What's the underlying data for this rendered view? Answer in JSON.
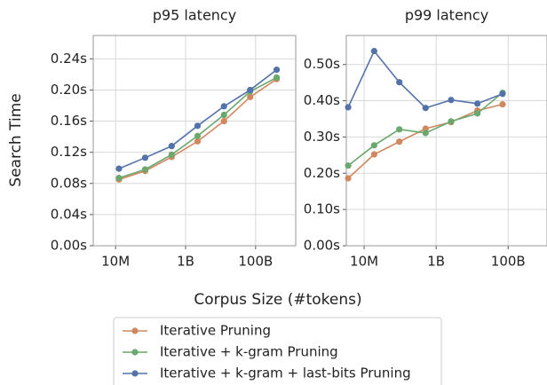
{
  "y_label": "Search Time",
  "x_label": "Corpus Size (#tokens)",
  "chart_data": [
    {
      "type": "line",
      "title": "p95 latency",
      "xscale": "log",
      "grid": true,
      "x": [
        12500000,
        70000000,
        400000000,
        2200000000,
        12500000000,
        70000000000,
        400000000000
      ],
      "xlim": [
        2300000,
        1400000000000
      ],
      "xticks": [
        {
          "value": 10000000,
          "label": "10M"
        },
        {
          "value": 1000000000,
          "label": "1B"
        },
        {
          "value": 100000000000,
          "label": "100B"
        }
      ],
      "ylim": [
        0,
        0.27
      ],
      "yticks": [
        {
          "value": 0,
          "label": "0.00s"
        },
        {
          "value": 0.04,
          "label": "0.04s"
        },
        {
          "value": 0.08,
          "label": "0.08s"
        },
        {
          "value": 0.12,
          "label": "0.12s"
        },
        {
          "value": 0.16,
          "label": "0.16s"
        },
        {
          "value": 0.2,
          "label": "0.20s"
        },
        {
          "value": 0.24,
          "label": "0.24s"
        }
      ],
      "series": [
        {
          "name": "Iterative Pruning",
          "color": "#d0875e",
          "values": [
            0.085,
            0.096,
            0.114,
            0.134,
            0.16,
            0.191,
            0.214
          ]
        },
        {
          "name": "Iterative + k-gram Pruning",
          "color": "#6aa86e",
          "values": [
            0.087,
            0.098,
            0.117,
            0.141,
            0.168,
            0.198,
            0.216
          ]
        },
        {
          "name": "Iterative + k-gram + last-bits Pruning",
          "color": "#5472aa",
          "values": [
            0.099,
            0.113,
            0.128,
            0.154,
            0.179,
            0.2,
            0.226
          ]
        }
      ]
    },
    {
      "type": "line",
      "title": "p99 latency",
      "xscale": "log",
      "grid": true,
      "x": [
        3600000,
        19000000,
        95000000,
        510000000,
        2600000000,
        14000000000,
        70000000000
      ],
      "xlim": [
        3200000,
        1200000000000
      ],
      "xticks": [
        {
          "value": 10000000,
          "label": "10M"
        },
        {
          "value": 1000000000,
          "label": "1B"
        },
        {
          "value": 100000000000,
          "label": "100B"
        }
      ],
      "ylim": [
        0,
        0.58
      ],
      "yticks": [
        {
          "value": 0,
          "label": "0.00s"
        },
        {
          "value": 0.1,
          "label": "0.10s"
        },
        {
          "value": 0.2,
          "label": "0.20s"
        },
        {
          "value": 0.3,
          "label": "0.30s"
        },
        {
          "value": 0.4,
          "label": "0.40s"
        },
        {
          "value": 0.5,
          "label": "0.50s"
        }
      ],
      "series": [
        {
          "name": "Iterative Pruning",
          "color": "#d0875e",
          "values": [
            0.186,
            0.252,
            0.287,
            0.323,
            0.341,
            0.373,
            0.39
          ]
        },
        {
          "name": "Iterative + k-gram Pruning",
          "color": "#6aa86e",
          "values": [
            0.221,
            0.277,
            0.321,
            0.311,
            0.343,
            0.365,
            0.422
          ]
        },
        {
          "name": "Iterative + k-gram + last-bits Pruning",
          "color": "#5472aa",
          "values": [
            0.382,
            0.537,
            0.451,
            0.38,
            0.402,
            0.392,
            0.419
          ]
        }
      ]
    }
  ]
}
